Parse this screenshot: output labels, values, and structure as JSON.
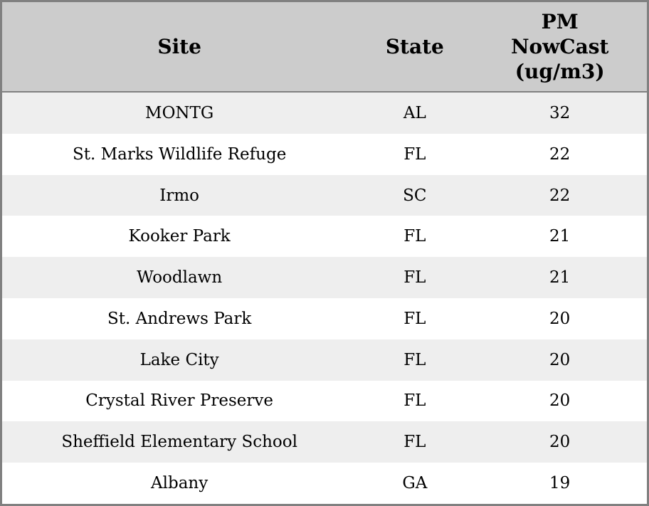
{
  "table": {
    "name": "pm-nowcast-table",
    "columns": [
      {
        "key": "site",
        "label": "Site"
      },
      {
        "key": "state",
        "label": "State"
      },
      {
        "key": "pm",
        "label": "PM\nNowCast\n(ug/m3)"
      }
    ],
    "rows": [
      {
        "site": "MONTG",
        "state": "AL",
        "pm": "32"
      },
      {
        "site": "St. Marks Wildlife Refuge",
        "state": "FL",
        "pm": "22"
      },
      {
        "site": "Irmo",
        "state": "SC",
        "pm": "22"
      },
      {
        "site": "Kooker Park",
        "state": "FL",
        "pm": "21"
      },
      {
        "site": "Woodlawn",
        "state": "FL",
        "pm": "21"
      },
      {
        "site": "St. Andrews Park",
        "state": "FL",
        "pm": "20"
      },
      {
        "site": "Lake City",
        "state": "FL",
        "pm": "20"
      },
      {
        "site": "Crystal River Preserve",
        "state": "FL",
        "pm": "20"
      },
      {
        "site": "Sheffield Elementary School",
        "state": "FL",
        "pm": "20"
      },
      {
        "site": "Albany",
        "state": "GA",
        "pm": "19"
      }
    ],
    "colors": {
      "header_bg": "#cccccc",
      "row_odd_bg": "#eeeeee",
      "row_even_bg": "#ffffff",
      "border": "#808080",
      "text": "#000000"
    }
  }
}
